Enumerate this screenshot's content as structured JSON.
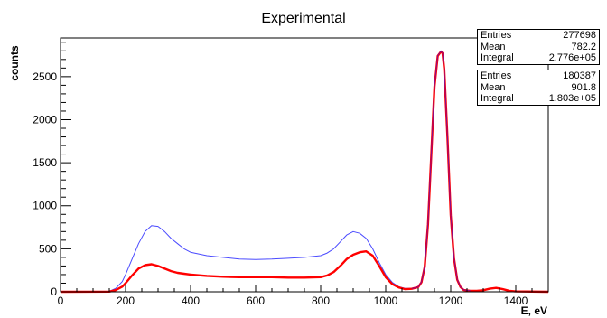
{
  "chart_data": {
    "type": "line",
    "title": "Experimental",
    "xlabel": "E, eV",
    "ylabel": "counts",
    "xlim": [
      0,
      1500
    ],
    "ylim": [
      0,
      2950
    ],
    "x_ticks": [
      "0",
      "200",
      "400",
      "600",
      "800",
      "1000",
      "1200",
      "1400"
    ],
    "y_ticks": [
      "0",
      "500",
      "1000",
      "1500",
      "2000",
      "2500"
    ],
    "grid": false,
    "series": [
      {
        "color": "#4a4aff",
        "x": [
          0,
          150,
          170,
          190,
          200,
          220,
          240,
          260,
          280,
          300,
          320,
          340,
          360,
          380,
          400,
          450,
          500,
          550,
          600,
          650,
          700,
          750,
          800,
          820,
          840,
          860,
          880,
          900,
          920,
          940,
          960,
          980,
          1000,
          1020,
          1040,
          1060,
          1080,
          1100,
          1110,
          1120,
          1130,
          1140,
          1150,
          1160,
          1170,
          1175,
          1180,
          1190,
          1200,
          1210,
          1220,
          1230,
          1240,
          1260,
          1280,
          1300,
          1320,
          1340,
          1360,
          1380,
          1400,
          1500
        ],
        "y": [
          0,
          5,
          40,
          120,
          200,
          380,
          560,
          700,
          770,
          760,
          700,
          620,
          560,
          500,
          460,
          420,
          400,
          380,
          375,
          380,
          390,
          400,
          420,
          450,
          500,
          580,
          660,
          700,
          680,
          620,
          500,
          340,
          200,
          110,
          60,
          40,
          40,
          60,
          120,
          300,
          800,
          1600,
          2400,
          2750,
          2800,
          2780,
          2600,
          1800,
          900,
          400,
          150,
          60,
          25,
          15,
          15,
          20,
          40,
          50,
          35,
          15,
          5,
          0
        ]
      },
      {
        "color": "#ff0000",
        "x": [
          0,
          150,
          170,
          190,
          200,
          220,
          240,
          260,
          280,
          300,
          320,
          340,
          360,
          380,
          400,
          450,
          500,
          550,
          600,
          650,
          700,
          750,
          800,
          820,
          840,
          860,
          880,
          900,
          920,
          940,
          960,
          980,
          1000,
          1020,
          1040,
          1060,
          1080,
          1100,
          1110,
          1120,
          1130,
          1140,
          1150,
          1160,
          1170,
          1175,
          1180,
          1190,
          1200,
          1210,
          1220,
          1230,
          1240,
          1260,
          1280,
          1300,
          1320,
          1340,
          1360,
          1380,
          1400,
          1500
        ],
        "y": [
          0,
          2,
          20,
          60,
          100,
          190,
          270,
          310,
          320,
          300,
          270,
          240,
          220,
          210,
          200,
          185,
          175,
          170,
          170,
          170,
          165,
          165,
          170,
          190,
          230,
          300,
          380,
          430,
          460,
          470,
          420,
          300,
          170,
          90,
          50,
          30,
          35,
          55,
          110,
          290,
          780,
          1580,
          2380,
          2740,
          2790,
          2770,
          2590,
          1790,
          890,
          390,
          140,
          55,
          20,
          12,
          12,
          18,
          36,
          45,
          30,
          12,
          4,
          0
        ]
      },
      {
        "color": "#8b0a8b",
        "x": [
          1080,
          1100,
          1110,
          1120,
          1130,
          1140,
          1150,
          1160,
          1170,
          1175,
          1180,
          1190,
          1200,
          1210,
          1220,
          1230,
          1240,
          1260
        ],
        "y": [
          37,
          57,
          115,
          295,
          790,
          1590,
          2390,
          2745,
          2795,
          2775,
          2595,
          1795,
          895,
          395,
          145,
          57,
          22,
          13
        ]
      }
    ]
  },
  "stats": [
    {
      "rows": [
        {
          "label": "Entries",
          "value": "277698"
        },
        {
          "label": "Mean",
          "value": "782.2"
        },
        {
          "label": "Integral",
          "value": "2.776e+05"
        }
      ]
    },
    {
      "rows": [
        {
          "label": "Entries",
          "value": "180387"
        },
        {
          "label": "Mean",
          "value": "901.8"
        },
        {
          "label": "Integral",
          "value": "1.803e+05"
        }
      ]
    }
  ]
}
